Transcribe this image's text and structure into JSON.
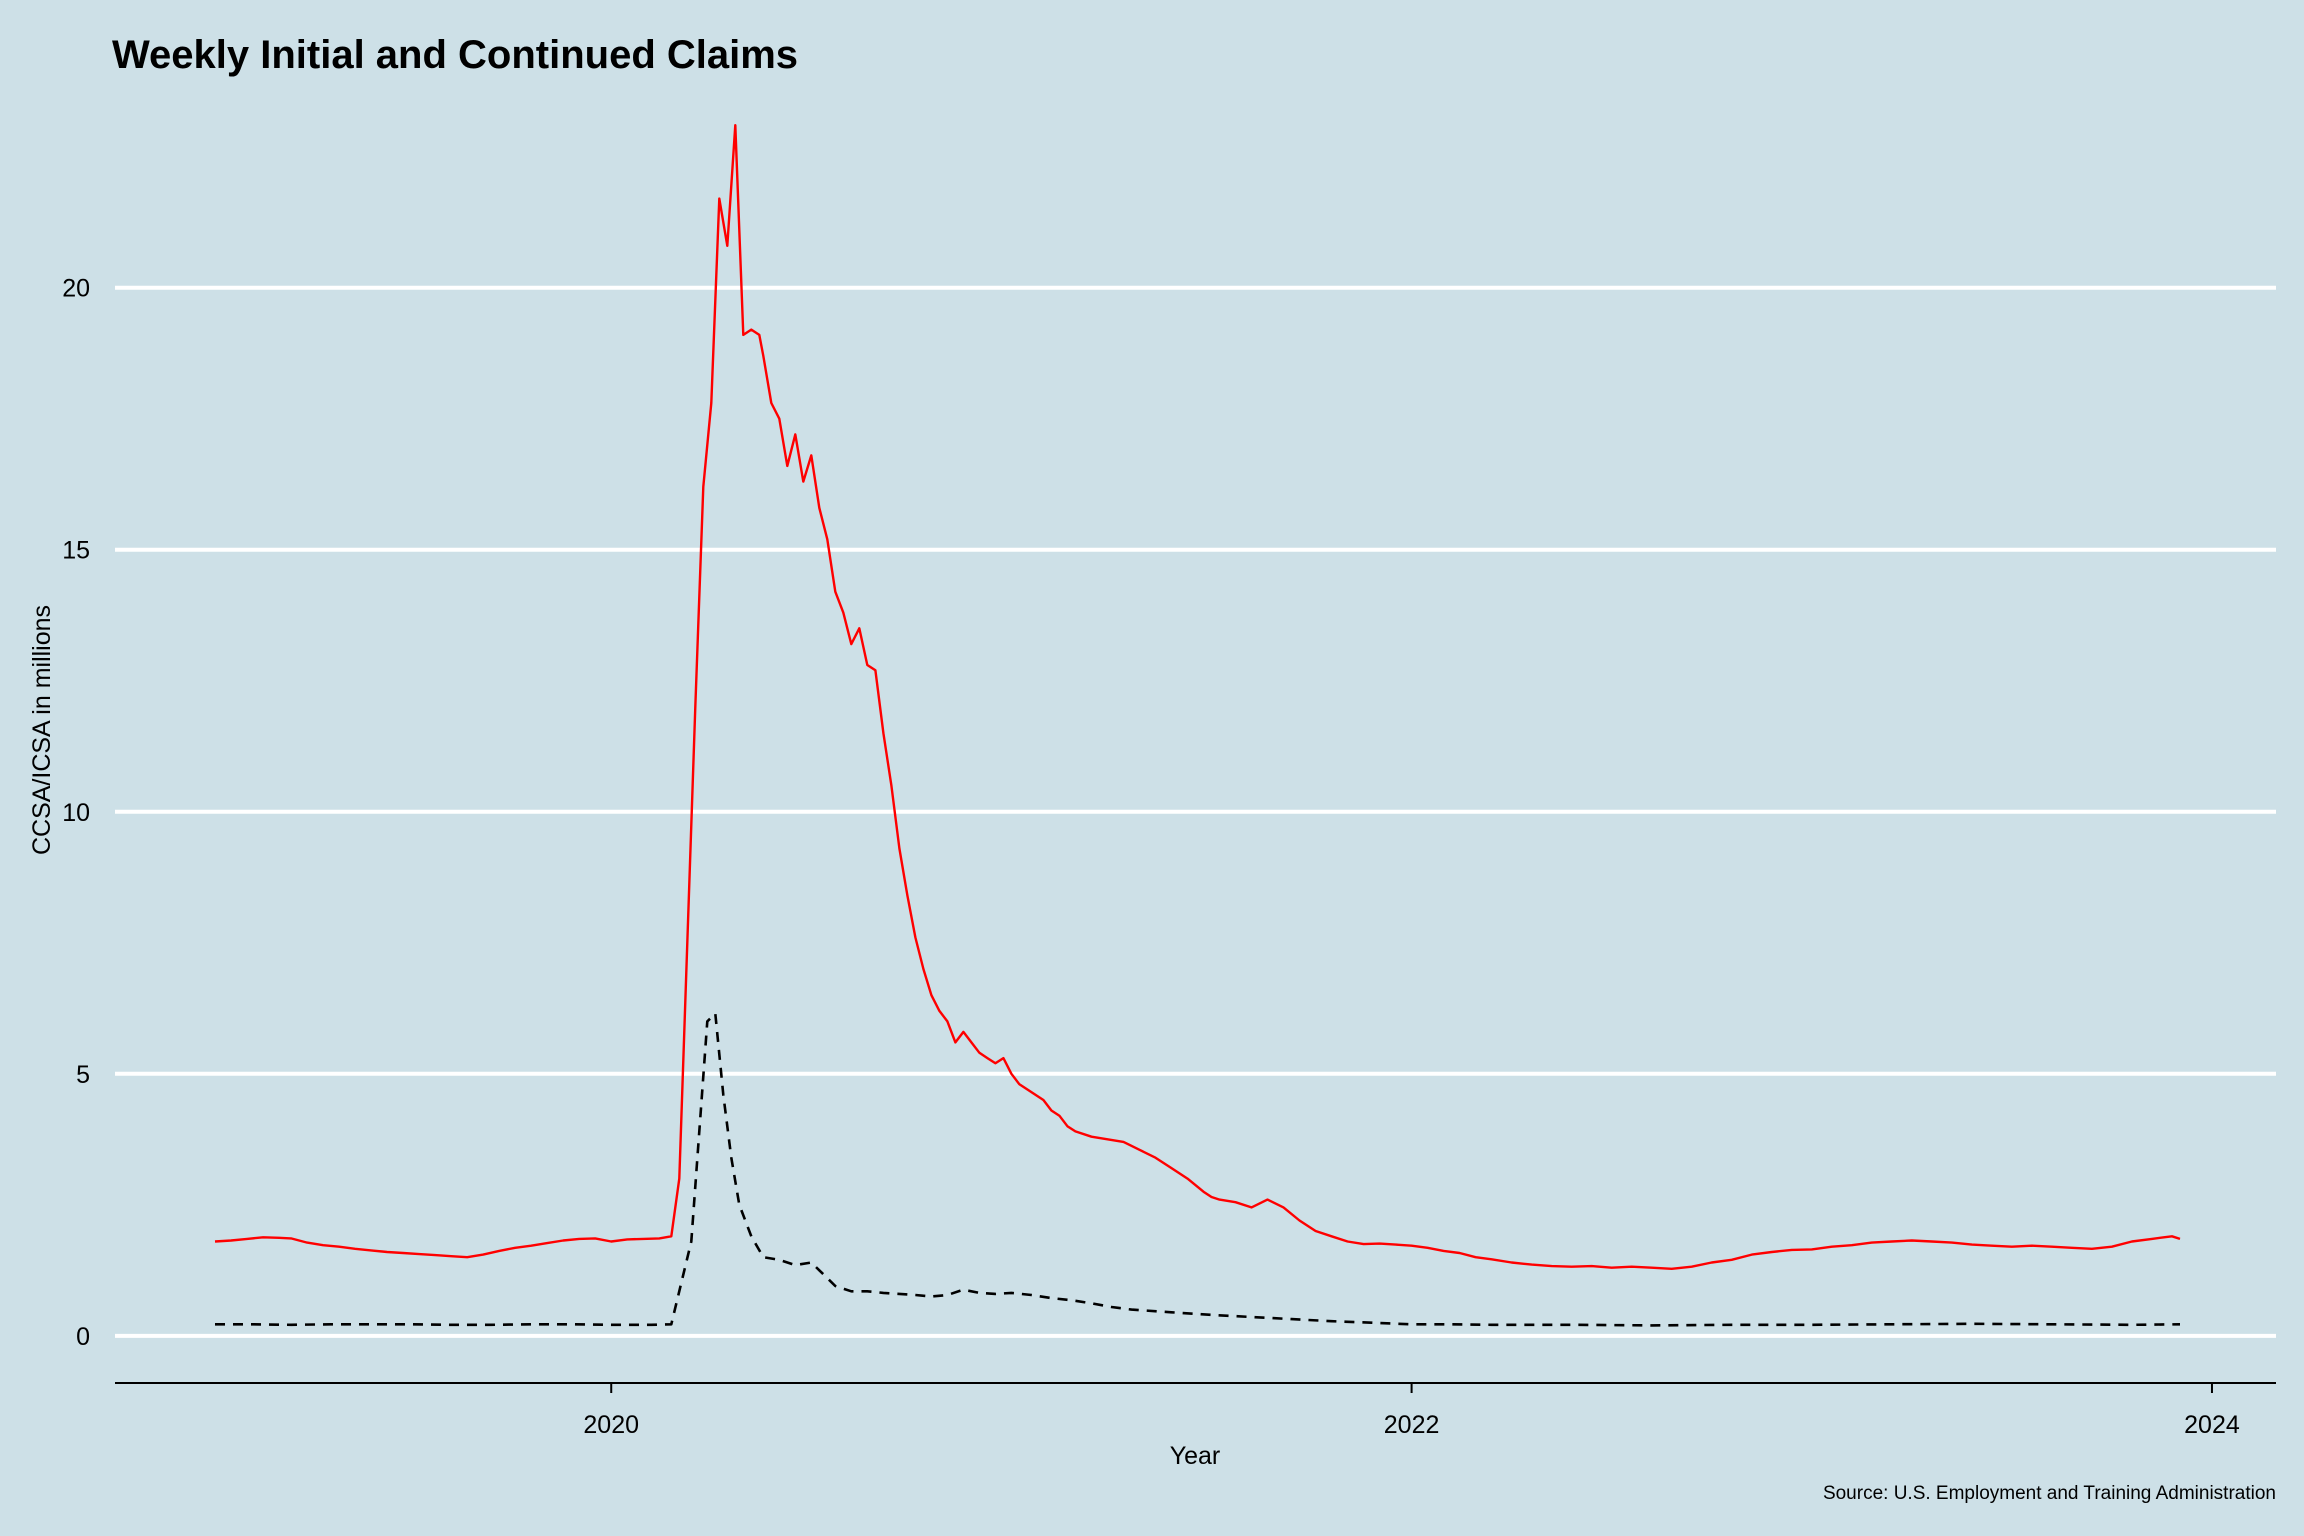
{
  "chart_data": {
    "type": "line",
    "title": "Weekly Initial and Continued Claims",
    "xlabel": "Year",
    "ylabel": "CCSA/ICSA in millions",
    "caption": "Source: U.S. Employment and Training Administration",
    "xlim": [
      2018.76,
      2024.16
    ],
    "ylim": [
      -0.9,
      23.2
    ],
    "x_ticks": [
      {
        "value": 2020,
        "label": "2020"
      },
      {
        "value": 2022,
        "label": "2022"
      },
      {
        "value": 2024,
        "label": "2024"
      }
    ],
    "y_ticks": [
      {
        "value": 0,
        "label": "0"
      },
      {
        "value": 5,
        "label": "5"
      },
      {
        "value": 10,
        "label": "10"
      },
      {
        "value": 15,
        "label": "15"
      },
      {
        "value": 20,
        "label": "20"
      }
    ],
    "grid": {
      "horizontal": true,
      "vertical": false,
      "color": "#ffffff"
    },
    "colors": {
      "background": "#cde0e7",
      "continued": "#ff0000",
      "initial": "#000000"
    },
    "series": [
      {
        "key": "continued",
        "line": "solid",
        "color": "#ff0000",
        "x": [
          2019.01,
          2019.05,
          2019.09,
          2019.13,
          2019.17,
          2019.2,
          2019.24,
          2019.28,
          2019.32,
          2019.36,
          2019.4,
          2019.44,
          2019.48,
          2019.52,
          2019.56,
          2019.6,
          2019.64,
          2019.68,
          2019.72,
          2019.76,
          2019.8,
          2019.84,
          2019.88,
          2019.92,
          2019.96,
          2020.0,
          2020.04,
          2020.08,
          2020.12,
          2020.15,
          2020.17,
          2020.19,
          2020.21,
          2020.23,
          2020.25,
          2020.27,
          2020.29,
          2020.31,
          2020.33,
          2020.35,
          2020.37,
          2020.38,
          2020.4,
          2020.42,
          2020.44,
          2020.46,
          2020.48,
          2020.5,
          2020.52,
          2020.54,
          2020.56,
          2020.58,
          2020.6,
          2020.62,
          2020.64,
          2020.66,
          2020.68,
          2020.7,
          2020.72,
          2020.74,
          2020.76,
          2020.78,
          2020.8,
          2020.82,
          2020.84,
          2020.86,
          2020.88,
          2020.9,
          2020.92,
          2020.94,
          2020.96,
          2020.98,
          2021.0,
          2021.02,
          2021.04,
          2021.06,
          2021.08,
          2021.1,
          2021.12,
          2021.14,
          2021.16,
          2021.2,
          2021.24,
          2021.28,
          2021.32,
          2021.36,
          2021.4,
          2021.44,
          2021.48,
          2021.5,
          2021.52,
          2021.56,
          2021.6,
          2021.64,
          2021.68,
          2021.72,
          2021.76,
          2021.8,
          2021.84,
          2021.88,
          2021.92,
          2021.96,
          2022.0,
          2022.04,
          2022.08,
          2022.12,
          2022.16,
          2022.2,
          2022.25,
          2022.3,
          2022.35,
          2022.4,
          2022.45,
          2022.5,
          2022.55,
          2022.6,
          2022.65,
          2022.7,
          2022.75,
          2022.8,
          2022.85,
          2022.9,
          2022.95,
          2023.0,
          2023.05,
          2023.1,
          2023.15,
          2023.2,
          2023.25,
          2023.3,
          2023.35,
          2023.4,
          2023.45,
          2023.5,
          2023.55,
          2023.6,
          2023.65,
          2023.7,
          2023.75,
          2023.8,
          2023.85,
          2023.88,
          2023.9,
          2023.92
        ],
        "values": [
          1.8,
          1.82,
          1.85,
          1.88,
          1.87,
          1.86,
          1.78,
          1.73,
          1.7,
          1.66,
          1.63,
          1.6,
          1.58,
          1.56,
          1.54,
          1.52,
          1.5,
          1.55,
          1.62,
          1.68,
          1.72,
          1.77,
          1.82,
          1.85,
          1.86,
          1.8,
          1.84,
          1.85,
          1.86,
          1.9,
          3.0,
          7.5,
          12.0,
          16.2,
          17.8,
          21.7,
          20.8,
          23.1,
          19.1,
          19.2,
          19.1,
          18.7,
          17.8,
          17.5,
          16.6,
          17.2,
          16.3,
          16.8,
          15.8,
          15.2,
          14.2,
          13.8,
          13.2,
          13.5,
          12.8,
          12.7,
          11.5,
          10.5,
          9.3,
          8.4,
          7.6,
          7.0,
          6.5,
          6.2,
          6.0,
          5.6,
          5.8,
          5.6,
          5.4,
          5.3,
          5.2,
          5.3,
          5.0,
          4.8,
          4.7,
          4.6,
          4.5,
          4.3,
          4.2,
          4.0,
          3.9,
          3.8,
          3.75,
          3.7,
          3.55,
          3.4,
          3.2,
          3.0,
          2.75,
          2.65,
          2.6,
          2.55,
          2.45,
          2.6,
          2.45,
          2.2,
          2.0,
          1.9,
          1.8,
          1.75,
          1.76,
          1.74,
          1.72,
          1.68,
          1.62,
          1.58,
          1.5,
          1.46,
          1.4,
          1.36,
          1.33,
          1.32,
          1.33,
          1.3,
          1.32,
          1.3,
          1.28,
          1.32,
          1.4,
          1.45,
          1.55,
          1.6,
          1.64,
          1.65,
          1.7,
          1.73,
          1.78,
          1.8,
          1.82,
          1.8,
          1.78,
          1.74,
          1.72,
          1.7,
          1.72,
          1.7,
          1.68,
          1.66,
          1.7,
          1.8,
          1.85,
          1.88,
          1.9,
          1.85
        ]
      },
      {
        "key": "initial",
        "line": "dashed",
        "color": "#000000",
        "x": [
          2019.01,
          2019.1,
          2019.2,
          2019.3,
          2019.4,
          2019.5,
          2019.6,
          2019.7,
          2019.8,
          2019.9,
          2020.0,
          2020.1,
          2020.15,
          2020.2,
          2020.22,
          2020.24,
          2020.26,
          2020.28,
          2020.3,
          2020.32,
          2020.35,
          2020.38,
          2020.42,
          2020.46,
          2020.5,
          2020.52,
          2020.56,
          2020.6,
          2020.64,
          2020.68,
          2020.72,
          2020.76,
          2020.8,
          2020.84,
          2020.88,
          2020.92,
          2020.96,
          2021.0,
          2021.05,
          2021.1,
          2021.15,
          2021.2,
          2021.25,
          2021.3,
          2021.4,
          2021.5,
          2021.6,
          2021.7,
          2021.8,
          2021.9,
          2022.0,
          2022.1,
          2022.2,
          2022.4,
          2022.6,
          2022.8,
          2023.0,
          2023.2,
          2023.4,
          2023.6,
          2023.8,
          2023.92
        ],
        "values": [
          0.22,
          0.22,
          0.21,
          0.22,
          0.22,
          0.22,
          0.21,
          0.21,
          0.22,
          0.22,
          0.21,
          0.21,
          0.22,
          1.8,
          3.9,
          6.0,
          6.15,
          4.6,
          3.4,
          2.5,
          1.9,
          1.5,
          1.45,
          1.35,
          1.4,
          1.25,
          0.95,
          0.85,
          0.85,
          0.82,
          0.8,
          0.78,
          0.75,
          0.78,
          0.88,
          0.82,
          0.8,
          0.82,
          0.78,
          0.72,
          0.68,
          0.62,
          0.55,
          0.5,
          0.45,
          0.4,
          0.36,
          0.32,
          0.28,
          0.25,
          0.22,
          0.22,
          0.21,
          0.21,
          0.2,
          0.21,
          0.21,
          0.22,
          0.23,
          0.22,
          0.21,
          0.22
        ]
      }
    ]
  }
}
